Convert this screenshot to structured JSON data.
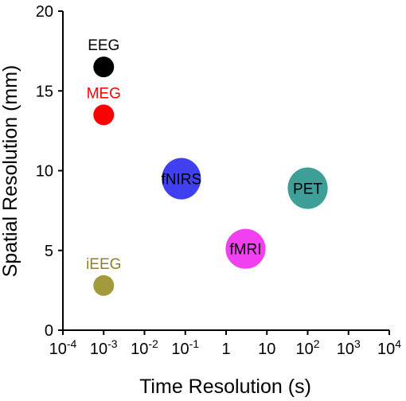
{
  "chart_data": {
    "type": "scatter",
    "title": "",
    "xlabel": "Time Resolution (s)",
    "ylabel": "Spatial Resolution (mm)",
    "x_scale": "log",
    "xlim": [
      0.0001,
      10000
    ],
    "ylim": [
      0,
      20
    ],
    "x_ticks": [
      {
        "value": 0.0001,
        "base": "10",
        "exp": "-4"
      },
      {
        "value": 0.001,
        "base": "10",
        "exp": "-3"
      },
      {
        "value": 0.01,
        "base": "10",
        "exp": "-2"
      },
      {
        "value": 0.1,
        "base": "10",
        "exp": "-1"
      },
      {
        "value": 1,
        "base": "1",
        "exp": ""
      },
      {
        "value": 10,
        "base": "10",
        "exp": ""
      },
      {
        "value": 100,
        "base": "10",
        "exp": "2"
      },
      {
        "value": 1000,
        "base": "10",
        "exp": "3"
      },
      {
        "value": 10000,
        "base": "10",
        "exp": "4"
      }
    ],
    "y_ticks": [
      0,
      5,
      10,
      15,
      20
    ],
    "grid": false,
    "points": [
      {
        "name": "EEG",
        "x": 0.001,
        "y": 16.5,
        "color": "#000000",
        "label_color": "#000000",
        "label_pos": "above"
      },
      {
        "name": "MEG",
        "x": 0.001,
        "y": 13.5,
        "color": "#ff0000",
        "label_color": "#ff0000",
        "label_pos": "above"
      },
      {
        "name": "iEEG",
        "x": 0.001,
        "y": 2.8,
        "color": "#a39a3b",
        "label_color": "#8b8129",
        "label_pos": "above"
      }
    ],
    "regions": [
      {
        "name": "fNIRS",
        "x": 0.08,
        "y": 9.5,
        "x_span_decades": 0.96,
        "y_span": 2.6,
        "color": "#4040f0",
        "label_color": "#000000"
      },
      {
        "name": "PET",
        "x": 100,
        "y": 8.9,
        "x_span_decades": 0.98,
        "y_span": 2.6,
        "color": "#3e9e98",
        "label_color": "#000000"
      },
      {
        "name": "fMRI",
        "x": 3,
        "y": 5.1,
        "x_span_decades": 0.98,
        "y_span": 2.5,
        "color": "#f040f0",
        "label_color": "#000000"
      }
    ]
  }
}
